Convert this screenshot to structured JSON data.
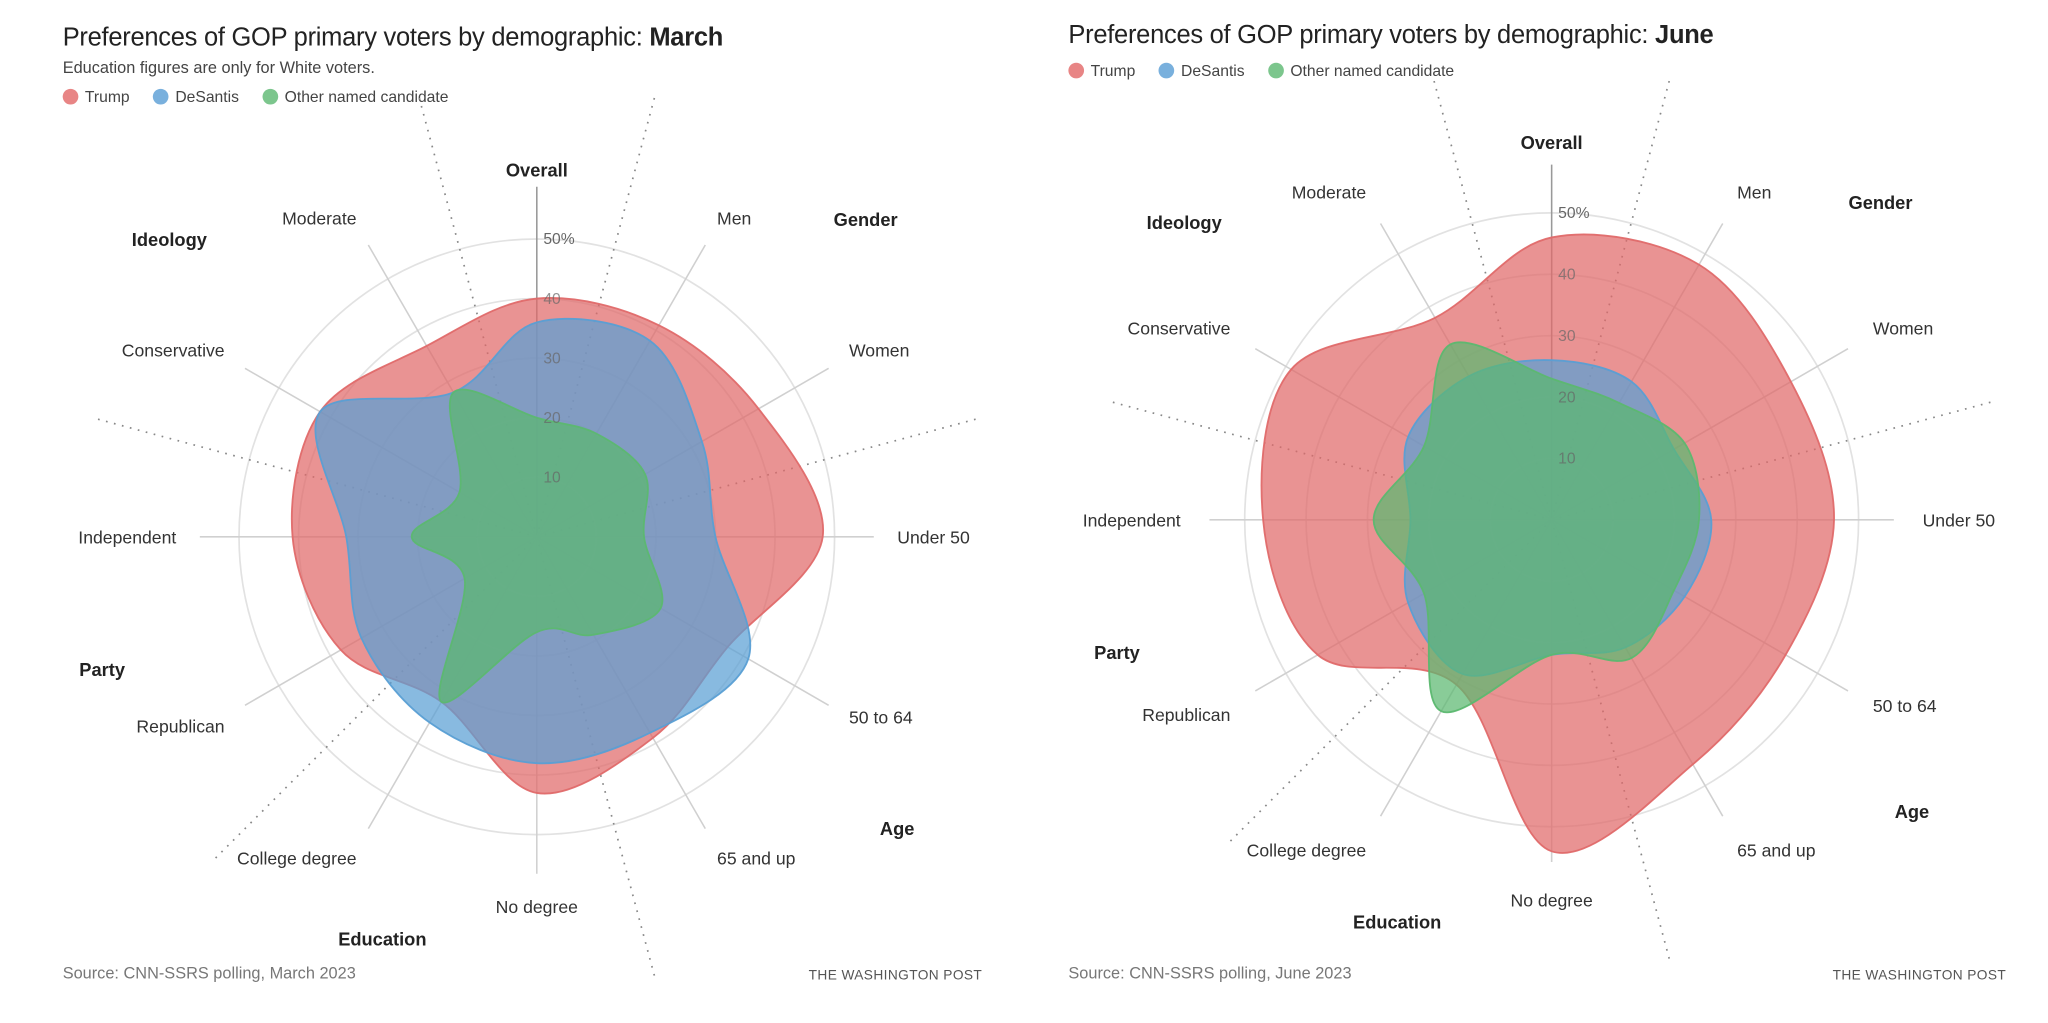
{
  "chart_data": [
    {
      "type": "radar",
      "title_prefix": "Preferences of GOP primary voters by demographic: ",
      "title_emphasis": "March",
      "subtitle": "Education figures are only for White voters.",
      "source": "Source: CNN-SSRS polling, March 2023",
      "credit": "THE WASHINGTON POST",
      "unit": "%",
      "r_range": [
        0,
        50
      ],
      "r_ticks": [
        "10",
        "20",
        "30",
        "40",
        "50%"
      ],
      "r_tick_values": [
        10,
        20,
        30,
        40,
        50
      ],
      "categories": [
        "Overall",
        "Men",
        "Women",
        "Under 50",
        "50 to 64",
        "65 and up",
        "No degree",
        "College degree",
        "Republican",
        "Independent",
        "Conservative",
        "Moderate"
      ],
      "groups": [
        "Gender",
        "Age",
        "Education",
        "Party",
        "Ideology"
      ],
      "legend_placement": "top-left",
      "series": [
        {
          "name": "Trump",
          "color": "#e06a6a",
          "values": [
            40,
            41,
            43,
            48,
            37,
            39,
            43,
            32,
            38,
            41,
            42,
            37
          ]
        },
        {
          "name": "DeSantis",
          "color": "#5a9fd4",
          "values": [
            36,
            38,
            32,
            30,
            41,
            38,
            38,
            36,
            34,
            32,
            42,
            28
          ]
        },
        {
          "name": "Other named candidate",
          "color": "#5cb870",
          "values": [
            20,
            20,
            21,
            18,
            24,
            19,
            16,
            32,
            14,
            21,
            15,
            28
          ]
        }
      ]
    },
    {
      "type": "radar",
      "title_prefix": "Preferences of GOP primary voters by demographic: ",
      "title_emphasis": "June",
      "subtitle": "",
      "source": "Source: CNN-SSRS polling, June 2023",
      "credit": "THE WASHINGTON POST",
      "unit": "%",
      "r_range": [
        0,
        50
      ],
      "r_ticks": [
        "10",
        "20",
        "30",
        "40",
        "50%"
      ],
      "r_tick_values": [
        10,
        20,
        30,
        40,
        50
      ],
      "categories": [
        "Overall",
        "Men",
        "Women",
        "Under 50",
        "50 to 64",
        "65 and up",
        "No degree",
        "College degree",
        "Republican",
        "Independent",
        "Conservative",
        "Moderate"
      ],
      "groups": [
        "Gender",
        "Age",
        "Education",
        "Party",
        "Ideology"
      ],
      "legend_placement": "top-left",
      "series": [
        {
          "name": "Trump",
          "color": "#e06a6a",
          "values": [
            46,
            48,
            45,
            46,
            44,
            46,
            54,
            31,
            44,
            47,
            49,
            38
          ]
        },
        {
          "name": "DeSantis",
          "color": "#5a9fd4",
          "values": [
            26,
            26,
            23,
            26,
            25,
            24,
            22,
            29,
            27,
            23,
            27,
            27
          ]
        },
        {
          "name": "Other named candidate",
          "color": "#5cb870",
          "values": [
            23,
            22,
            25,
            24,
            23,
            26,
            22,
            36,
            24,
            29,
            24,
            33
          ]
        }
      ]
    }
  ]
}
